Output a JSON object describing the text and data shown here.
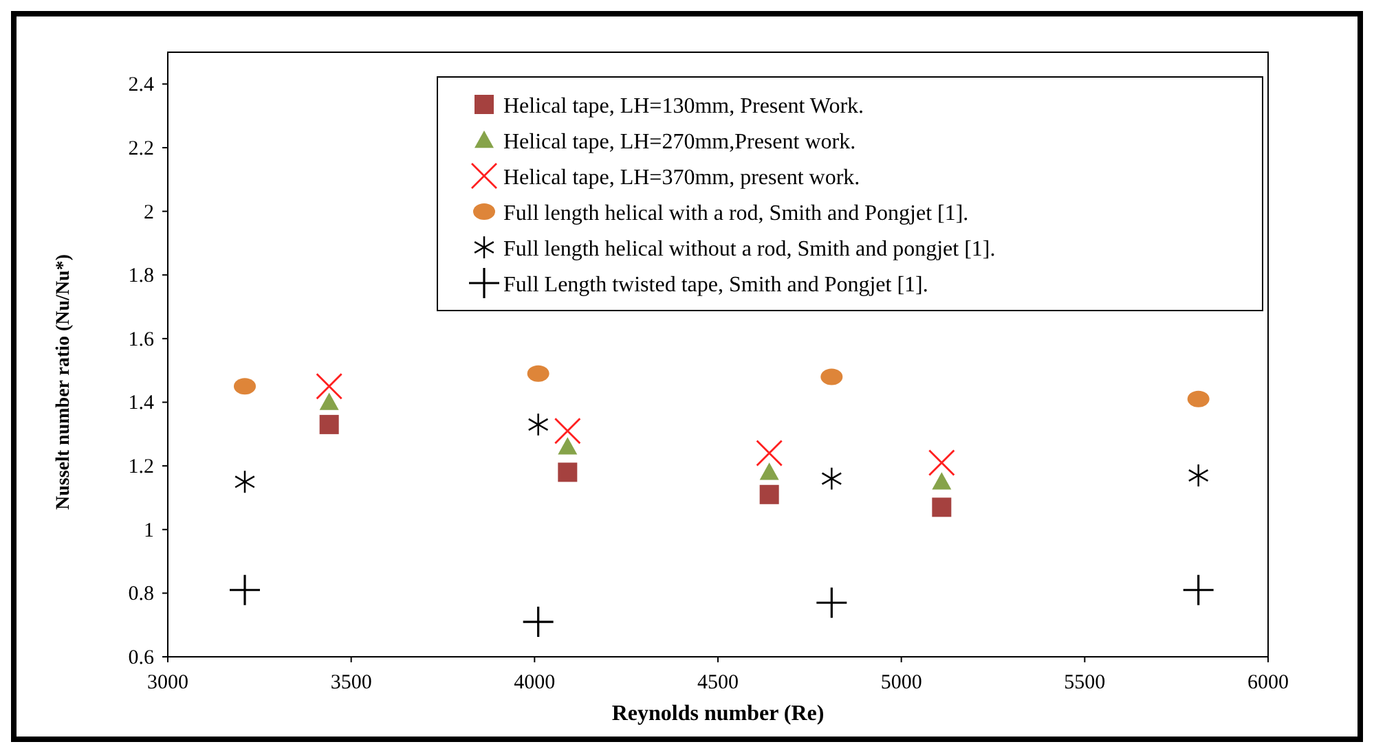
{
  "chart_data": {
    "type": "scatter",
    "xlabel": "Reynolds number   (Re)",
    "ylabel": "Nusselt number  ratio (Nu/Nu*)",
    "xlim": [
      3000,
      6000
    ],
    "ylim": [
      0.6,
      2.5
    ],
    "xticks": [
      3000,
      3500,
      4000,
      4500,
      5000,
      5500,
      6000
    ],
    "yticks": [
      0.6,
      0.8,
      1,
      1.2,
      1.4,
      1.6,
      1.8,
      2,
      2.2,
      2.4
    ],
    "grid": false,
    "legend": "top right",
    "series": [
      {
        "name": "Helical tape, LH=130mm, Present Work.",
        "color": "#a5413f",
        "marker": "square",
        "x": [
          3440,
          4090,
          4640,
          5110
        ],
        "values": [
          1.33,
          1.18,
          1.11,
          1.07
        ]
      },
      {
        "name": "Helical tape,  LH=270mm,Present work.",
        "color": "#86a34a",
        "marker": "triangle",
        "x": [
          3440,
          4090,
          4640,
          5110
        ],
        "values": [
          1.4,
          1.26,
          1.18,
          1.15
        ]
      },
      {
        "name": "Helical tape, LH=370mm, present work.",
        "color": "#ff2020",
        "marker": "cross",
        "x": [
          3440,
          4090,
          4640,
          5110
        ],
        "values": [
          1.45,
          1.31,
          1.24,
          1.21
        ]
      },
      {
        "name": "Full length helical with a rod, Smith and Pongjet [1].",
        "color": "#de8539",
        "marker": "circle",
        "x": [
          3210,
          4010,
          4810,
          5810
        ],
        "values": [
          1.45,
          1.49,
          1.48,
          1.41
        ]
      },
      {
        "name": "Full length helical without a rod, Smith and pongjet [1].",
        "color": "#000000",
        "marker": "star",
        "x": [
          3210,
          4010,
          4810,
          5810
        ],
        "values": [
          1.15,
          1.33,
          1.16,
          1.17
        ]
      },
      {
        "name": "Full Length twisted tape, Smith and Pongjet [1].",
        "color": "#000000",
        "marker": "plus",
        "x": [
          3210,
          4010,
          4810,
          5810
        ],
        "values": [
          0.81,
          0.71,
          0.77,
          0.81
        ]
      }
    ]
  }
}
